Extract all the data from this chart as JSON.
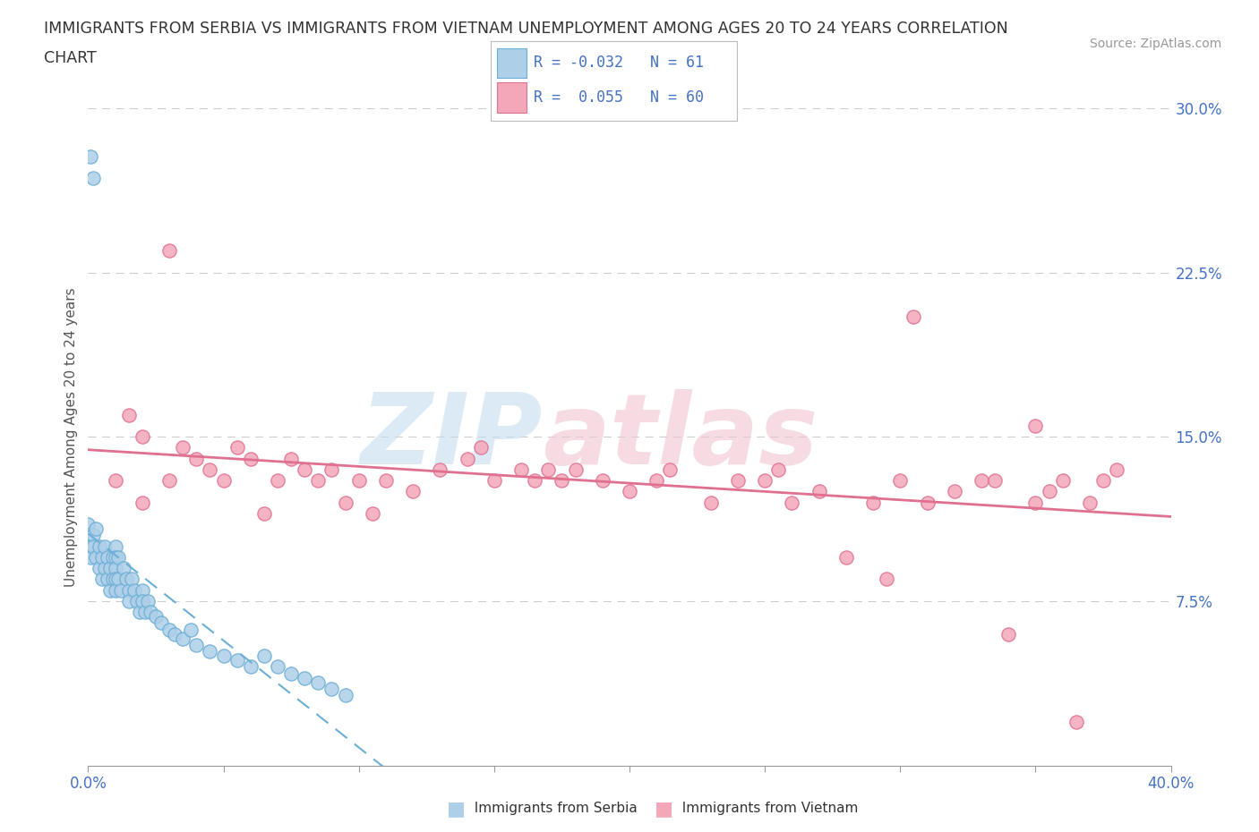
{
  "title_line1": "IMMIGRANTS FROM SERBIA VS IMMIGRANTS FROM VIETNAM UNEMPLOYMENT AMONG AGES 20 TO 24 YEARS CORRELATION",
  "title_line2": "CHART",
  "source": "Source: ZipAtlas.com",
  "ylabel": "Unemployment Among Ages 20 to 24 years",
  "xlim": [
    0.0,
    0.4
  ],
  "ylim": [
    0.0,
    0.3
  ],
  "xticks": [
    0.0,
    0.05,
    0.1,
    0.15,
    0.2,
    0.25,
    0.3,
    0.35,
    0.4
  ],
  "yticks": [
    0.0,
    0.075,
    0.15,
    0.225,
    0.3
  ],
  "serbia_color": "#aecfe8",
  "vietnam_color": "#f4a7b9",
  "serbia_edge": "#6baed6",
  "vietnam_edge": "#e07090",
  "serbia_R": -0.032,
  "serbia_N": 61,
  "vietnam_R": 0.055,
  "vietnam_N": 60,
  "serbia_trend_color": "#6baed6",
  "vietnam_trend_color": "#e07090",
  "background_color": "#ffffff",
  "grid_color": "#cccccc",
  "axis_color": "#999999",
  "tick_label_color": "#4472C4",
  "title_color": "#333333",
  "source_color": "#999999",
  "ylabel_color": "#555555"
}
